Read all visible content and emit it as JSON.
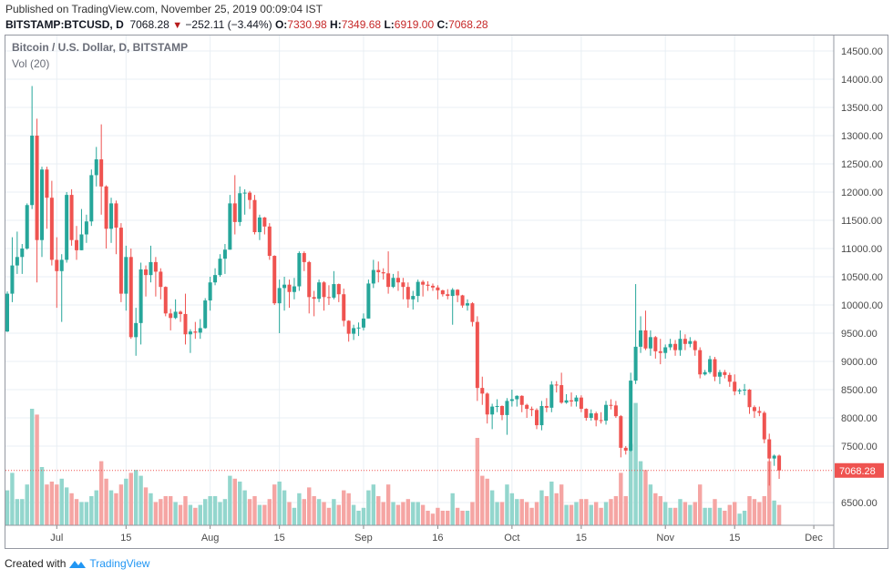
{
  "header": {
    "published": "Published on TradingView.com, November 25, 2019 00:09:04 IST",
    "symbol": "BITSTAMP:BTCUSD, D",
    "last": "7068.28",
    "change_arrow": "down-triangle-icon",
    "change": "−252.11 (−3.44%)",
    "o_label": "O:",
    "o": "7330.98",
    "h_label": "H:",
    "h": "7349.68",
    "l_label": "L:",
    "l": "6919.00",
    "c_label": "C:",
    "c": "7068.28"
  },
  "footer": {
    "created_with": "Created with",
    "brand": "TradingView",
    "logo": "tradingview-logo-icon"
  },
  "colors": {
    "up": "#26a69a",
    "down": "#ef5350",
    "vol_up": "#93d6cd",
    "vol_down": "#f5a5a3",
    "price_line": "#ef5350",
    "grid": "#e9eff4"
  },
  "chart_data": {
    "type": "candlestick",
    "title": "Bitcoin / U.S. Dollar, D, BITSTAMP",
    "volume_label": "Vol (20)",
    "ylim": [
      6100,
      14900
    ],
    "y_ticks": [
      "6500.00",
      "7500.00",
      "8000.00",
      "8500.00",
      "9000.00",
      "9500.00",
      "10000.00",
      "10500.00",
      "11000.00",
      "11500.00",
      "12000.00",
      "12500.00",
      "13000.00",
      "13500.00",
      "14000.00",
      "14500.00"
    ],
    "x_ticks": [
      {
        "label": "Jul",
        "date": "2019-07-01"
      },
      {
        "label": "15",
        "date": "2019-07-15"
      },
      {
        "label": "Aug",
        "date": "2019-08-01"
      },
      {
        "label": "15",
        "date": "2019-08-15"
      },
      {
        "label": "Sep",
        "date": "2019-09-01"
      },
      {
        "label": "16",
        "date": "2019-09-16"
      },
      {
        "label": "Oct",
        "date": "2019-10-01"
      },
      {
        "label": "15",
        "date": "2019-10-15"
      },
      {
        "label": "Nov",
        "date": "2019-11-01"
      },
      {
        "label": "15",
        "date": "2019-11-15"
      },
      {
        "label": "Dec",
        "date": "2019-12-01"
      }
    ],
    "last_price": "7068.28",
    "grid": true,
    "columns": [
      "date",
      "open",
      "high",
      "low",
      "close",
      "volume"
    ],
    "candles": [
      [
        "2019-06-21",
        9530,
        10240,
        9520,
        10200,
        12
      ],
      [
        "2019-06-22",
        10200,
        11200,
        10050,
        10700,
        18
      ],
      [
        "2019-06-23",
        10700,
        11300,
        10550,
        10850,
        9
      ],
      [
        "2019-06-24",
        10850,
        11080,
        10550,
        11000,
        9
      ],
      [
        "2019-06-25",
        11000,
        11800,
        10980,
        11770,
        14
      ],
      [
        "2019-06-26",
        11770,
        13880,
        11700,
        13000,
        40
      ],
      [
        "2019-06-27",
        13000,
        13300,
        10400,
        11150,
        38
      ],
      [
        "2019-06-28",
        11150,
        12450,
        10850,
        12400,
        20
      ],
      [
        "2019-06-29",
        12400,
        12450,
        11350,
        11900,
        14
      ],
      [
        "2019-06-30",
        11900,
        12200,
        10700,
        10800,
        15
      ],
      [
        "2019-07-01",
        10800,
        11200,
        9950,
        10600,
        14
      ],
      [
        "2019-07-02",
        10600,
        10900,
        9700,
        10800,
        16
      ],
      [
        "2019-07-03",
        10800,
        12000,
        10750,
        11950,
        13
      ],
      [
        "2019-07-04",
        11950,
        12050,
        11050,
        11150,
        11
      ],
      [
        "2019-07-05",
        11150,
        11400,
        10800,
        10970,
        9
      ],
      [
        "2019-07-06",
        10970,
        11700,
        10970,
        11250,
        8
      ],
      [
        "2019-07-07",
        11250,
        11600,
        11100,
        11480,
        8
      ],
      [
        "2019-07-08",
        11480,
        12400,
        11400,
        12300,
        10
      ],
      [
        "2019-07-09",
        12300,
        12800,
        12100,
        12580,
        12
      ],
      [
        "2019-07-10",
        12580,
        13200,
        11600,
        12100,
        22
      ],
      [
        "2019-07-11",
        12100,
        12120,
        11000,
        11350,
        16
      ],
      [
        "2019-07-12",
        11350,
        11900,
        11100,
        11800,
        12
      ],
      [
        "2019-07-13",
        11800,
        11850,
        10900,
        11370,
        11
      ],
      [
        "2019-07-14",
        11370,
        11450,
        10050,
        10200,
        14
      ],
      [
        "2019-07-15",
        10200,
        11050,
        9900,
        10850,
        16
      ],
      [
        "2019-07-16",
        10850,
        11000,
        9400,
        9430,
        18
      ],
      [
        "2019-07-17",
        9430,
        9950,
        9100,
        9680,
        19
      ],
      [
        "2019-07-18",
        9680,
        10750,
        9300,
        10630,
        17
      ],
      [
        "2019-07-19",
        10630,
        10700,
        10150,
        10530,
        13
      ],
      [
        "2019-07-20",
        10530,
        11050,
        10400,
        10760,
        11
      ],
      [
        "2019-07-21",
        10760,
        10850,
        10150,
        10590,
        8
      ],
      [
        "2019-07-22",
        10590,
        10650,
        10100,
        10320,
        9
      ],
      [
        "2019-07-23",
        10320,
        10330,
        9800,
        9850,
        10
      ],
      [
        "2019-07-24",
        9850,
        9930,
        9550,
        9770,
        10
      ],
      [
        "2019-07-25",
        9770,
        10100,
        9750,
        9880,
        8
      ],
      [
        "2019-07-26",
        9880,
        9900,
        9700,
        9840,
        7
      ],
      [
        "2019-07-27",
        9840,
        10200,
        9300,
        9480,
        10
      ],
      [
        "2019-07-28",
        9480,
        9570,
        9150,
        9530,
        7
      ],
      [
        "2019-07-29",
        9530,
        9700,
        9400,
        9510,
        6
      ],
      [
        "2019-07-30",
        9510,
        9750,
        9400,
        9590,
        7
      ],
      [
        "2019-07-31",
        9590,
        10120,
        9580,
        10080,
        9
      ],
      [
        "2019-08-01",
        10080,
        10500,
        9900,
        10400,
        10
      ],
      [
        "2019-08-02",
        10400,
        10650,
        10350,
        10530,
        10
      ],
      [
        "2019-08-03",
        10530,
        10900,
        10500,
        10820,
        8
      ],
      [
        "2019-08-04",
        10820,
        11080,
        10550,
        10980,
        9
      ],
      [
        "2019-08-05",
        10980,
        11950,
        10980,
        11800,
        17
      ],
      [
        "2019-08-06",
        11800,
        12300,
        11250,
        11470,
        16
      ],
      [
        "2019-08-07",
        11470,
        12100,
        11400,
        11980,
        15
      ],
      [
        "2019-08-08",
        11980,
        12050,
        11600,
        11990,
        12
      ],
      [
        "2019-08-09",
        11990,
        12020,
        11700,
        11860,
        9
      ],
      [
        "2019-08-10",
        11860,
        11950,
        11250,
        11290,
        10
      ],
      [
        "2019-08-11",
        11290,
        11600,
        11150,
        11550,
        7
      ],
      [
        "2019-08-12",
        11550,
        11560,
        11250,
        11390,
        7
      ],
      [
        "2019-08-13",
        11390,
        11450,
        10800,
        10870,
        9
      ],
      [
        "2019-08-14",
        10870,
        10880,
        10000,
        10030,
        14
      ],
      [
        "2019-08-15",
        10030,
        10450,
        9500,
        10300,
        15
      ],
      [
        "2019-08-16",
        10300,
        10500,
        9900,
        10360,
        12
      ],
      [
        "2019-08-17",
        10360,
        10450,
        9950,
        10230,
        8
      ],
      [
        "2019-08-18",
        10230,
        10480,
        10100,
        10330,
        6
      ],
      [
        "2019-08-19",
        10330,
        10950,
        10250,
        10920,
        11
      ],
      [
        "2019-08-20",
        10920,
        10950,
        10600,
        10760,
        9
      ],
      [
        "2019-08-21",
        10760,
        10780,
        9850,
        10140,
        13
      ],
      [
        "2019-08-22",
        10140,
        10250,
        9800,
        10110,
        10
      ],
      [
        "2019-08-23",
        10110,
        10450,
        10050,
        10400,
        9
      ],
      [
        "2019-08-24",
        10400,
        10420,
        9900,
        10140,
        8
      ],
      [
        "2019-08-25",
        10140,
        10350,
        10000,
        10130,
        6
      ],
      [
        "2019-08-26",
        10130,
        10600,
        10100,
        10370,
        9
      ],
      [
        "2019-08-27",
        10370,
        10380,
        10050,
        10190,
        7
      ],
      [
        "2019-08-28",
        10190,
        10290,
        9620,
        9720,
        12
      ],
      [
        "2019-08-29",
        9720,
        9730,
        9350,
        9490,
        11
      ],
      [
        "2019-08-30",
        9490,
        9650,
        9380,
        9590,
        7
      ],
      [
        "2019-08-31",
        9590,
        9690,
        9450,
        9600,
        5
      ],
      [
        "2019-09-01",
        9600,
        9850,
        9550,
        9760,
        6
      ],
      [
        "2019-09-02",
        9760,
        10450,
        9760,
        10380,
        12
      ],
      [
        "2019-09-03",
        10380,
        10800,
        10300,
        10620,
        14
      ],
      [
        "2019-09-04",
        10620,
        10770,
        10400,
        10580,
        10
      ],
      [
        "2019-09-05",
        10580,
        10650,
        10450,
        10560,
        8
      ],
      [
        "2019-09-06",
        10560,
        10950,
        10200,
        10320,
        14
      ],
      [
        "2019-09-07",
        10320,
        10550,
        10300,
        10480,
        8
      ],
      [
        "2019-09-08",
        10480,
        10600,
        10250,
        10400,
        7
      ],
      [
        "2019-09-09",
        10400,
        10480,
        10100,
        10320,
        8
      ],
      [
        "2019-09-10",
        10320,
        10400,
        9950,
        10100,
        9
      ],
      [
        "2019-09-11",
        10100,
        10250,
        9920,
        10160,
        8
      ],
      [
        "2019-09-12",
        10160,
        10450,
        10050,
        10410,
        8
      ],
      [
        "2019-09-13",
        10410,
        10440,
        10150,
        10360,
        7
      ],
      [
        "2019-09-14",
        10360,
        10420,
        10250,
        10340,
        5
      ],
      [
        "2019-09-15",
        10340,
        10380,
        10250,
        10310,
        4
      ],
      [
        "2019-09-16",
        10310,
        10350,
        10100,
        10260,
        6
      ],
      [
        "2019-09-17",
        10260,
        10270,
        10150,
        10190,
        5
      ],
      [
        "2019-09-18",
        10190,
        10280,
        10100,
        10160,
        5
      ],
      [
        "2019-09-19",
        10160,
        10300,
        9650,
        10270,
        11
      ],
      [
        "2019-09-20",
        10270,
        10280,
        10050,
        10170,
        6
      ],
      [
        "2019-09-21",
        10170,
        10180,
        9950,
        9990,
        5
      ],
      [
        "2019-09-22",
        9990,
        10100,
        9900,
        10030,
        5
      ],
      [
        "2019-09-23",
        10030,
        10050,
        9620,
        9700,
        8
      ],
      [
        "2019-09-24",
        9700,
        9800,
        8300,
        8530,
        30
      ],
      [
        "2019-09-25",
        8530,
        8730,
        8230,
        8430,
        17
      ],
      [
        "2019-09-26",
        8430,
        8450,
        7900,
        8060,
        16
      ],
      [
        "2019-09-27",
        8060,
        8250,
        7800,
        8200,
        12
      ],
      [
        "2019-09-28",
        8200,
        8330,
        8100,
        8210,
        8
      ],
      [
        "2019-09-29",
        8210,
        8220,
        7960,
        8050,
        8
      ],
      [
        "2019-09-30",
        8050,
        8350,
        7700,
        8300,
        14
      ],
      [
        "2019-10-01",
        8300,
        8500,
        8200,
        8330,
        11
      ],
      [
        "2019-10-02",
        8330,
        8400,
        8200,
        8390,
        9
      ],
      [
        "2019-10-03",
        8390,
        8400,
        8100,
        8230,
        9
      ],
      [
        "2019-10-04",
        8230,
        8250,
        8000,
        8160,
        8
      ],
      [
        "2019-10-05",
        8160,
        8200,
        8030,
        8140,
        6
      ],
      [
        "2019-10-06",
        8140,
        8170,
        7800,
        7870,
        8
      ],
      [
        "2019-10-07",
        7870,
        8300,
        7780,
        8210,
        12
      ],
      [
        "2019-10-08",
        8210,
        8350,
        8100,
        8180,
        10
      ],
      [
        "2019-10-09",
        8180,
        8650,
        8100,
        8590,
        15
      ],
      [
        "2019-10-10",
        8590,
        8650,
        8450,
        8580,
        11
      ],
      [
        "2019-10-11",
        8580,
        8800,
        8250,
        8270,
        14
      ],
      [
        "2019-10-12",
        8270,
        8420,
        8250,
        8310,
        7
      ],
      [
        "2019-10-13",
        8310,
        8450,
        8200,
        8290,
        7
      ],
      [
        "2019-10-14",
        8290,
        8400,
        8200,
        8360,
        8
      ],
      [
        "2019-10-15",
        8360,
        8400,
        8100,
        8160,
        9
      ],
      [
        "2019-10-16",
        8160,
        8170,
        7950,
        8000,
        9
      ],
      [
        "2019-10-17",
        8000,
        8150,
        7950,
        8080,
        7
      ],
      [
        "2019-10-18",
        8080,
        8110,
        7850,
        7960,
        8
      ],
      [
        "2019-10-19",
        7960,
        8100,
        7900,
        7950,
        6
      ],
      [
        "2019-10-20",
        7950,
        8300,
        7880,
        8230,
        8
      ],
      [
        "2019-10-21",
        8230,
        8330,
        8150,
        8220,
        9
      ],
      [
        "2019-10-22",
        8220,
        8300,
        8000,
        8030,
        10
      ],
      [
        "2019-10-23",
        8030,
        8050,
        7300,
        7470,
        18
      ],
      [
        "2019-10-24",
        7470,
        7500,
        7350,
        7420,
        10
      ],
      [
        "2019-10-25",
        7420,
        8800,
        7400,
        8660,
        28
      ],
      [
        "2019-10-26",
        8660,
        10370,
        8600,
        9260,
        42
      ],
      [
        "2019-10-27",
        9260,
        9800,
        9150,
        9550,
        22
      ],
      [
        "2019-10-28",
        9550,
        9900,
        9200,
        9230,
        19
      ],
      [
        "2019-10-29",
        9230,
        9550,
        9100,
        9430,
        14
      ],
      [
        "2019-10-30",
        9430,
        9450,
        9050,
        9180,
        11
      ],
      [
        "2019-10-31",
        9180,
        9400,
        8950,
        9150,
        10
      ],
      [
        "2019-11-01",
        9150,
        9300,
        9050,
        9250,
        8
      ],
      [
        "2019-11-02",
        9250,
        9400,
        9200,
        9310,
        6
      ],
      [
        "2019-11-03",
        9310,
        9380,
        9100,
        9200,
        6
      ],
      [
        "2019-11-04",
        9200,
        9550,
        9100,
        9400,
        9
      ],
      [
        "2019-11-05",
        9400,
        9480,
        9200,
        9310,
        8
      ],
      [
        "2019-11-06",
        9310,
        9430,
        9250,
        9360,
        7
      ],
      [
        "2019-11-07",
        9360,
        9380,
        9100,
        9200,
        8
      ],
      [
        "2019-11-08",
        9200,
        9250,
        8700,
        8770,
        14
      ],
      [
        "2019-11-09",
        8770,
        8850,
        8750,
        8810,
        6
      ],
      [
        "2019-11-10",
        8810,
        9100,
        8780,
        9040,
        6
      ],
      [
        "2019-11-11",
        9040,
        9080,
        8650,
        8730,
        9
      ],
      [
        "2019-11-12",
        8730,
        8850,
        8600,
        8810,
        6
      ],
      [
        "2019-11-13",
        8810,
        8850,
        8700,
        8760,
        5
      ],
      [
        "2019-11-14",
        8760,
        8800,
        8550,
        8640,
        7
      ],
      [
        "2019-11-15",
        8640,
        8770,
        8400,
        8470,
        8
      ],
      [
        "2019-11-16",
        8470,
        8520,
        8420,
        8490,
        4
      ],
      [
        "2019-11-17",
        8490,
        8600,
        8400,
        8500,
        5
      ],
      [
        "2019-11-18",
        8500,
        8510,
        8070,
        8190,
        10
      ],
      [
        "2019-11-19",
        8190,
        8220,
        8000,
        8120,
        9
      ],
      [
        "2019-11-20",
        8120,
        8200,
        8030,
        8090,
        8
      ],
      [
        "2019-11-21",
        8090,
        8120,
        7550,
        7620,
        10
      ],
      [
        "2019-11-22",
        7620,
        7720,
        6800,
        7280,
        22
      ],
      [
        "2019-11-23",
        7280,
        7350,
        7150,
        7330,
        8.5
      ],
      [
        "2019-11-24",
        7330.98,
        7349.68,
        6919.0,
        7068.28,
        7
      ]
    ]
  }
}
